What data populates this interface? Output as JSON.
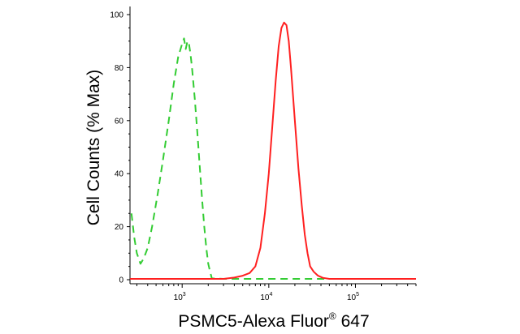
{
  "chart_data": {
    "type": "line",
    "xlabel_main": "PSMC5-Alexa Fluor",
    "xlabel_sup": "®",
    "xlabel_tail": " 647",
    "ylabel": "Cell Counts (% Max)",
    "x_scale": "log",
    "xlim": [
      250,
      500000
    ],
    "ylim": [
      0,
      100
    ],
    "x_ticks": [
      {
        "value": 1000,
        "base": "10",
        "exp": "3"
      },
      {
        "value": 10000,
        "base": "10",
        "exp": "4"
      },
      {
        "value": 100000,
        "base": "10",
        "exp": "5"
      }
    ],
    "y_ticks": [
      0,
      20,
      40,
      60,
      80,
      100
    ],
    "grid": false,
    "series": [
      {
        "color": "#33cc33",
        "style": "dashed",
        "points": [
          [
            260,
            25
          ],
          [
            280,
            16
          ],
          [
            300,
            10
          ],
          [
            330,
            6
          ],
          [
            360,
            8
          ],
          [
            400,
            12
          ],
          [
            450,
            20
          ],
          [
            520,
            32
          ],
          [
            600,
            45
          ],
          [
            700,
            60
          ],
          [
            800,
            74
          ],
          [
            900,
            84
          ],
          [
            1000,
            89
          ],
          [
            1050,
            91
          ],
          [
            1100,
            87
          ],
          [
            1150,
            90
          ],
          [
            1200,
            89
          ],
          [
            1250,
            85
          ],
          [
            1300,
            80
          ],
          [
            1400,
            68
          ],
          [
            1500,
            55
          ],
          [
            1600,
            42
          ],
          [
            1700,
            30
          ],
          [
            1800,
            20
          ],
          [
            1900,
            12
          ],
          [
            2000,
            6
          ],
          [
            2100,
            3
          ],
          [
            2200,
            0.5
          ],
          [
            3000,
            0.3
          ],
          [
            500000,
            0.3
          ]
        ]
      },
      {
        "color": "#ff2020",
        "style": "solid",
        "points": [
          [
            250,
            0.3
          ],
          [
            3000,
            0.3
          ],
          [
            4000,
            0.8
          ],
          [
            5000,
            1.5
          ],
          [
            6000,
            2.5
          ],
          [
            7000,
            5
          ],
          [
            8000,
            12
          ],
          [
            9000,
            25
          ],
          [
            10000,
            40
          ],
          [
            11000,
            58
          ],
          [
            12000,
            75
          ],
          [
            13000,
            88
          ],
          [
            14000,
            95
          ],
          [
            15000,
            97
          ],
          [
            16000,
            96
          ],
          [
            17000,
            90
          ],
          [
            18000,
            80
          ],
          [
            20000,
            60
          ],
          [
            22000,
            42
          ],
          [
            24000,
            28
          ],
          [
            26000,
            17
          ],
          [
            28000,
            10
          ],
          [
            30000,
            5
          ],
          [
            33000,
            3
          ],
          [
            37000,
            1.5
          ],
          [
            42000,
            0.7
          ],
          [
            50000,
            0.3
          ],
          [
            500000,
            0.3
          ]
        ]
      }
    ]
  }
}
